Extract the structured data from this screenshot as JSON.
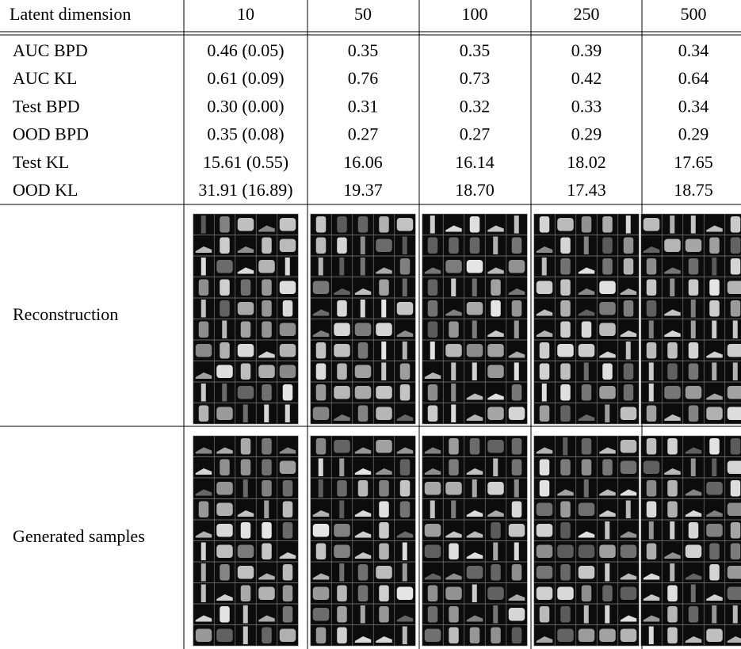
{
  "table": {
    "header": [
      "Latent dimension",
      "10",
      "50",
      "100",
      "250",
      "500"
    ],
    "rows": [
      [
        "AUC BPD",
        "0.46 (0.05)",
        "0.35",
        "0.35",
        "0.39",
        "0.34"
      ],
      [
        "AUC KL",
        "0.61 (0.09)",
        "0.76",
        "0.73",
        "0.42",
        "0.64"
      ],
      [
        "Test BPD",
        "0.30 (0.00)",
        "0.31",
        "0.32",
        "0.33",
        "0.34"
      ],
      [
        "OOD BPD",
        "0.35 (0.08)",
        "0.27",
        "0.27",
        "0.29",
        "0.29"
      ],
      [
        "Test KL",
        "15.61 (0.55)",
        "16.06",
        "16.14",
        "18.02",
        "17.65"
      ],
      [
        "OOD KL",
        "31.91 (16.89)",
        "19.37",
        "18.70",
        "17.43",
        "18.75"
      ]
    ],
    "image_rows": [
      "Reconstruction",
      "Generated samples"
    ]
  }
}
